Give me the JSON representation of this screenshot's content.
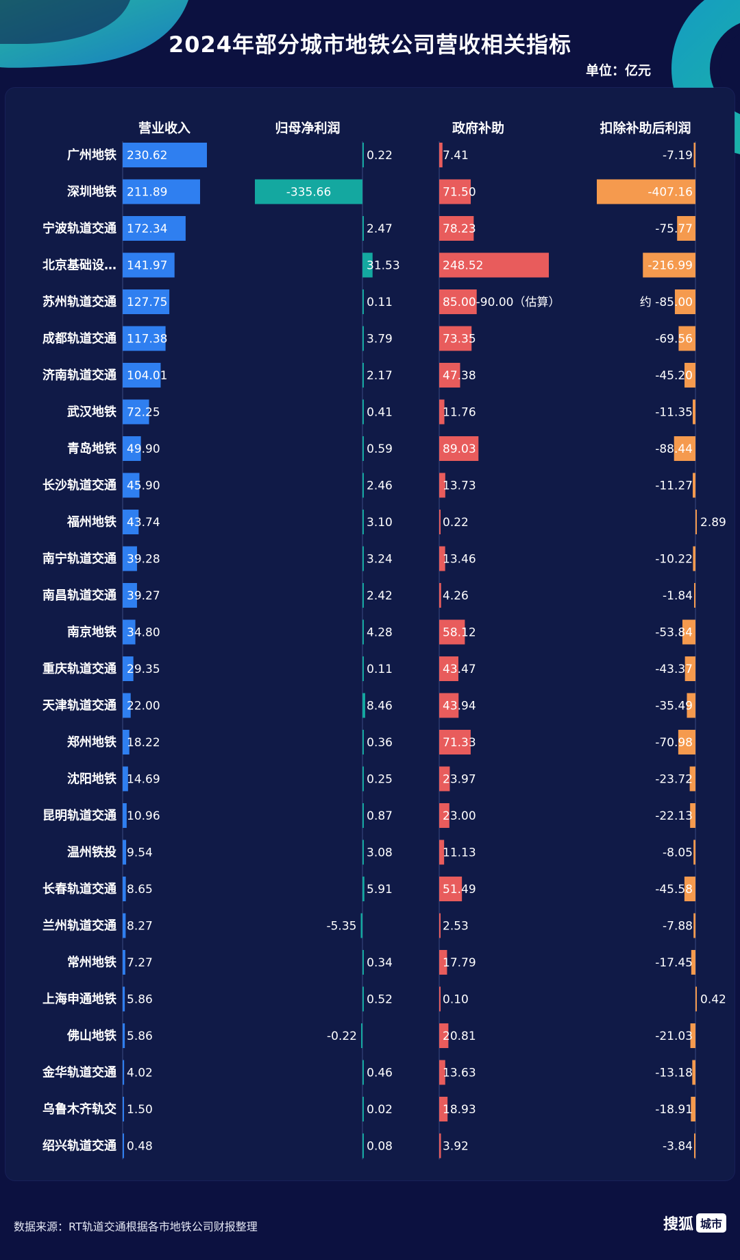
{
  "header": {
    "title": "2024年部分城市地铁公司营收相关指标",
    "unit": "单位：亿元"
  },
  "footer": {
    "source": "数据来源：RT轨道交通根据各市地铁公司财报整理",
    "logo": "搜狐",
    "logo_badge": "城市"
  },
  "colors": {
    "revenue": "#2f7ff0",
    "net_profit": "#14a8a0",
    "subsidy": "#e85c5c",
    "profit_ex_subsidy": "#f59a4e",
    "background": "#0c1140"
  },
  "chart_data": {
    "type": "bar",
    "layout": "small-multiples-horizontal",
    "categories": [
      "广州地铁",
      "深圳地铁",
      "宁波轨道交通",
      "北京基础设…",
      "苏州轨道交通",
      "成都轨道交通",
      "济南轨道交通",
      "武汉地铁",
      "青岛地铁",
      "长沙轨道交通",
      "福州地铁",
      "南宁轨道交通",
      "南昌轨道交通",
      "南京地铁",
      "重庆轨道交通",
      "天津轨道交通",
      "郑州地铁",
      "沈阳地铁",
      "昆明轨道交通",
      "温州铁投",
      "长春轨道交通",
      "兰州轨道交通",
      "常州地铁",
      "上海申通地铁",
      "佛山地铁",
      "金华轨道交通",
      "乌鲁木齐轨交",
      "绍兴轨道交通"
    ],
    "series": [
      {
        "name": "营业收入",
        "values": [
          230.62,
          211.89,
          172.34,
          141.97,
          127.75,
          117.38,
          104.01,
          72.25,
          49.9,
          45.9,
          43.74,
          39.28,
          39.27,
          34.8,
          29.35,
          22.0,
          18.22,
          14.69,
          10.96,
          9.54,
          8.65,
          8.27,
          7.27,
          5.86,
          5.86,
          4.02,
          1.5,
          0.48
        ],
        "labels": [
          "230.62",
          "211.89",
          "172.34",
          "141.97",
          "127.75",
          "117.38",
          "104.01",
          "72.25",
          "49.90",
          "45.90",
          "43.74",
          "39.28",
          "39.27",
          "34.80",
          "29.35",
          "22.00",
          "18.22",
          "14.69",
          "10.96",
          "9.54",
          "8.65",
          "8.27",
          "7.27",
          "5.86",
          "5.86",
          "4.02",
          "1.50",
          "0.48"
        ]
      },
      {
        "name": "归母净利润",
        "values": [
          0.22,
          -335.66,
          2.47,
          31.53,
          0.11,
          3.79,
          2.17,
          0.41,
          0.59,
          2.46,
          3.1,
          3.24,
          2.42,
          4.28,
          0.11,
          8.46,
          0.36,
          0.25,
          0.87,
          3.08,
          5.91,
          -5.35,
          0.34,
          0.52,
          -0.22,
          0.46,
          0.02,
          0.08
        ],
        "labels": [
          "0.22",
          "-335.66",
          "2.47",
          "31.53",
          "0.11",
          "3.79",
          "2.17",
          "0.41",
          "0.59",
          "2.46",
          "3.10",
          "3.24",
          "2.42",
          "4.28",
          "0.11",
          "8.46",
          "0.36",
          "0.25",
          "0.87",
          "3.08",
          "5.91",
          "-5.35",
          "0.34",
          "0.52",
          "-0.22",
          "0.46",
          "0.02",
          "0.08"
        ]
      },
      {
        "name": "政府补助",
        "values": [
          7.41,
          71.5,
          78.23,
          248.52,
          85.0,
          73.35,
          47.38,
          11.76,
          89.03,
          13.73,
          0.22,
          13.46,
          4.26,
          58.12,
          43.47,
          43.94,
          71.33,
          23.97,
          23.0,
          11.13,
          51.49,
          2.53,
          17.79,
          0.1,
          20.81,
          13.63,
          18.93,
          3.92
        ],
        "labels": [
          "7.41",
          "71.50",
          "78.23",
          "248.52",
          "85.00-90.00（估算）",
          "73.35",
          "47.38",
          "11.76",
          "89.03",
          "13.73",
          "0.22",
          "13.46",
          "4.26",
          "58.12",
          "43.47",
          "43.94",
          "71.33",
          "23.97",
          "23.00",
          "11.13",
          "51.49",
          "2.53",
          "17.79",
          "0.10",
          "20.81",
          "13.63",
          "18.93",
          "3.92"
        ]
      },
      {
        "name": "扣除补助后利润",
        "values": [
          -7.19,
          -407.16,
          -75.77,
          -216.99,
          -85.0,
          -69.56,
          -45.2,
          -11.35,
          -88.44,
          -11.27,
          2.89,
          -10.22,
          -1.84,
          -53.84,
          -43.37,
          -35.49,
          -70.98,
          -23.72,
          -22.13,
          -8.05,
          -45.58,
          -7.88,
          -17.45,
          0.42,
          -21.03,
          -13.18,
          -18.91,
          -3.84
        ],
        "labels": [
          "-7.19",
          "-407.16",
          "-75.77",
          "-216.99",
          "约 -85.00",
          "-69.56",
          "-45.20",
          "-11.35",
          "-88.44",
          "-11.27",
          "2.89",
          "-10.22",
          "-1.84",
          "-53.84",
          "-43.37",
          "-35.49",
          "-70.98",
          "-23.72",
          "-22.13",
          "-8.05",
          "-45.58",
          "-7.88",
          "-17.45",
          "0.42",
          "-21.03",
          "-13.18",
          "-18.91",
          "-3.84"
        ]
      }
    ]
  }
}
